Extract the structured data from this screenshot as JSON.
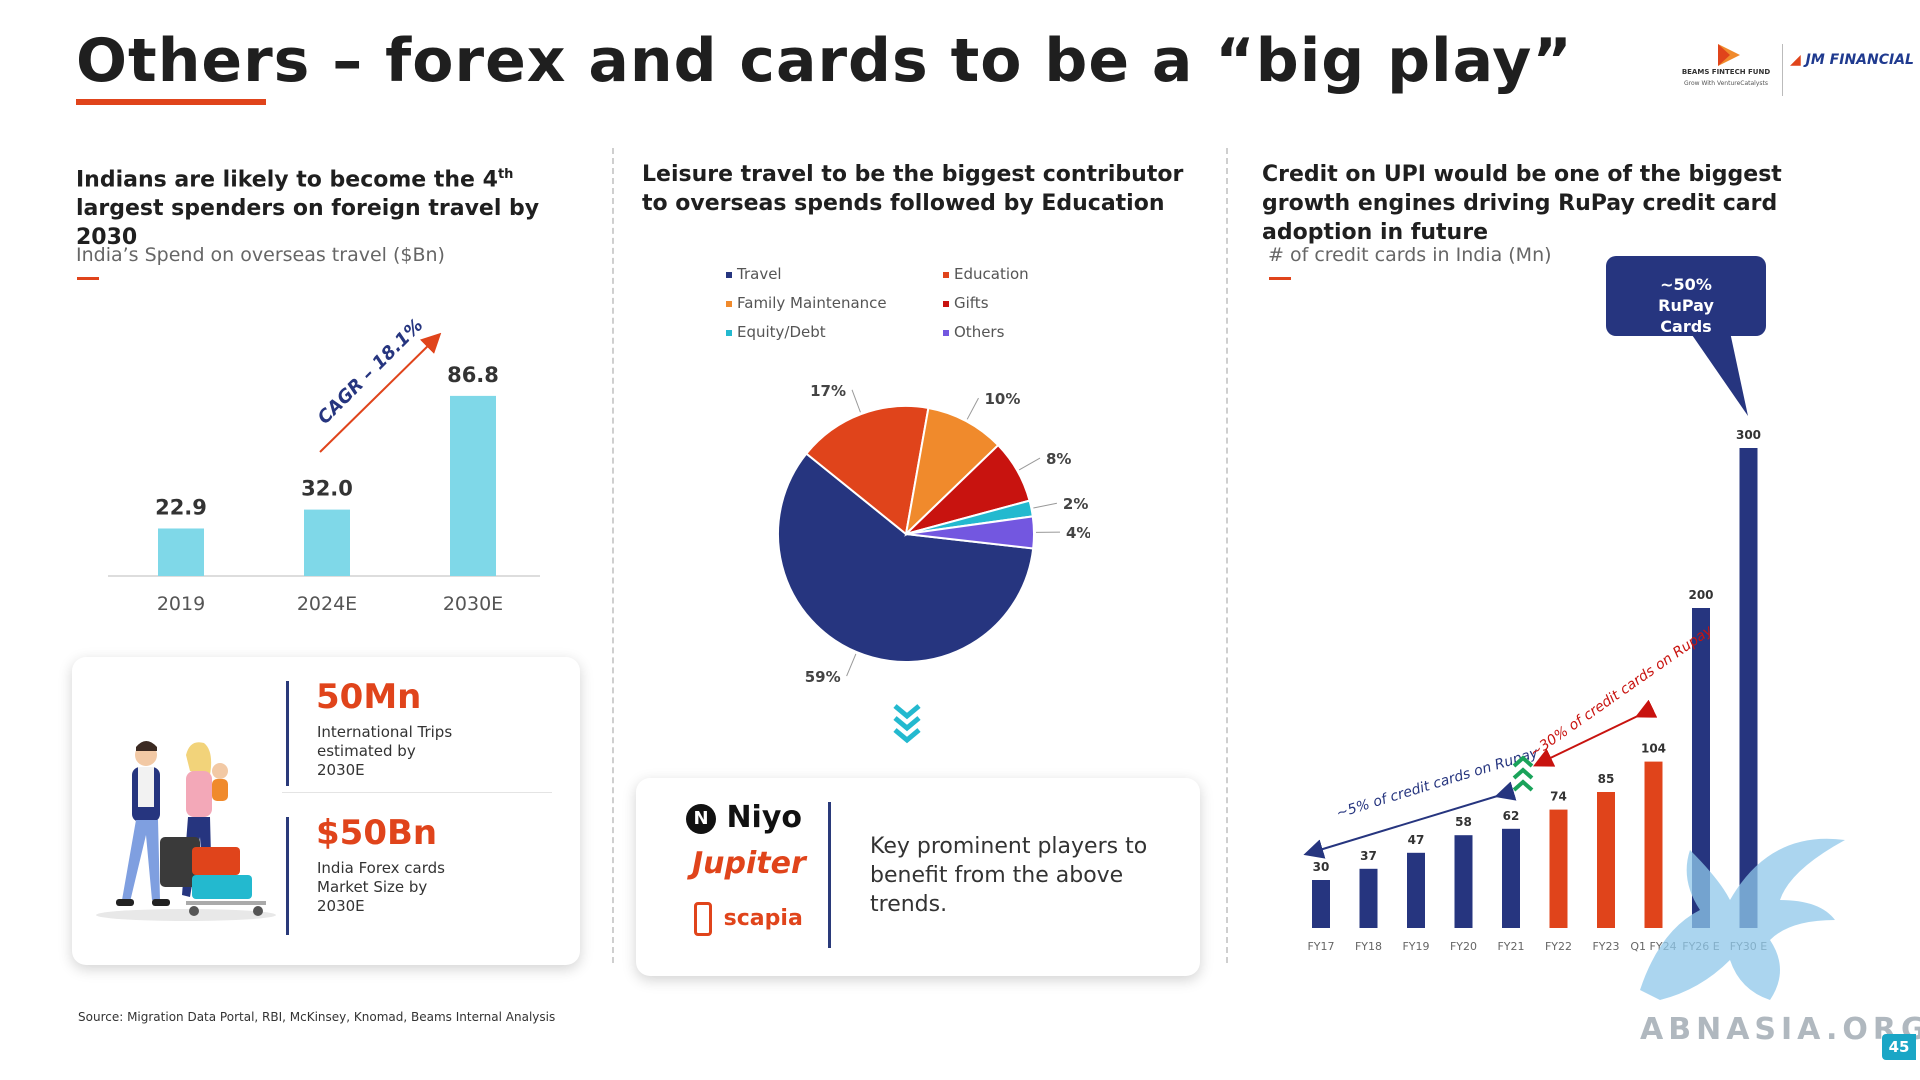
{
  "page": {
    "title": "Others – forex and cards to be a “big play”",
    "source": "Source: Migration Data Portal, RBI, McKinsey, Knomad, Beams Internal Analysis",
    "page_number": "45",
    "watermark": "ABNASIA.ORG"
  },
  "logos": {
    "beams_name": "BEAMS FINTECH FUND",
    "beams_tagline": "Grow With VentureCatalysts",
    "jm_name": "JM FINANCIAL"
  },
  "section1": {
    "heading_pre": "Indians are likely to become the 4",
    "heading_sup": "th",
    "heading_post": " largest spenders on foreign travel by 2030",
    "subheading": "India’s Spend on overseas travel ($Bn)",
    "cagr_label": "CAGR – 18.1%",
    "stats": [
      {
        "value": "50Mn",
        "text": "International Trips estimated by 2030E"
      },
      {
        "value": "$50Bn",
        "text": "India Forex cards Market Size by 2030E"
      }
    ]
  },
  "section2": {
    "heading": "Leisure travel to be the biggest contributor to overseas spends followed by Education",
    "players": [
      "Niyo",
      "Jupiter",
      "scapia"
    ],
    "players_text": "Key prominent players to benefit from the above trends."
  },
  "section3": {
    "heading": "Credit on UPI would be one of the biggest growth engines driving RuPay credit card adoption in future",
    "subheading": "# of credit cards in India (Mn)",
    "callout": "~50% RuPay Cards",
    "annot_low": "~5% of credit cards on Rupay",
    "annot_mid": "~30% of credit cards on Rupay"
  },
  "chart_data": [
    {
      "type": "bar",
      "title": "India’s Spend on overseas travel ($Bn)",
      "categories": [
        "2019",
        "2024E",
        "2030E"
      ],
      "values": [
        22.9,
        32.0,
        86.8
      ],
      "value_labels": [
        "22.9",
        "32.0",
        "86.8"
      ],
      "ylim": [
        0,
        100
      ],
      "color": "#7fd8e8",
      "annotation": "CAGR – 18.1%"
    },
    {
      "type": "pie",
      "legend": [
        "Travel",
        "Education",
        "Family Maintenance",
        "Gifts",
        "Equity/Debt",
        "Others"
      ],
      "slices": [
        {
          "name": "Travel",
          "value": 59,
          "label": "59%",
          "color": "#26357f"
        },
        {
          "name": "Education",
          "value": 17,
          "label": "17%",
          "color": "#e0441b"
        },
        {
          "name": "Family Maintenance",
          "value": 10,
          "label": "10%",
          "color": "#f08a2c"
        },
        {
          "name": "Gifts",
          "value": 8,
          "label": "8%",
          "color": "#c8130f"
        },
        {
          "name": "Equity/Debt",
          "value": 2,
          "label": "2%",
          "color": "#23b9cf"
        },
        {
          "name": "Others",
          "value": 4,
          "label": "4%",
          "color": "#7357e0"
        }
      ]
    },
    {
      "type": "bar",
      "title": "# of credit cards in India (Mn)",
      "categories": [
        "FY17",
        "FY18",
        "FY19",
        "FY20",
        "FY21",
        "FY22",
        "FY23",
        "Q1 FY24",
        "FY26 E",
        "FY30 E"
      ],
      "values": [
        30,
        37,
        47,
        58,
        62,
        74,
        85,
        104,
        200,
        300
      ],
      "value_labels": [
        "30",
        "37",
        "47",
        "58",
        "62",
        "74",
        "85",
        "104",
        "200",
        "300"
      ],
      "colors": [
        "#26357f",
        "#26357f",
        "#26357f",
        "#26357f",
        "#26357f",
        "#e0441b",
        "#e0441b",
        "#e0441b",
        "#26357f",
        "#26357f"
      ],
      "ylim": [
        0,
        300
      ]
    }
  ]
}
